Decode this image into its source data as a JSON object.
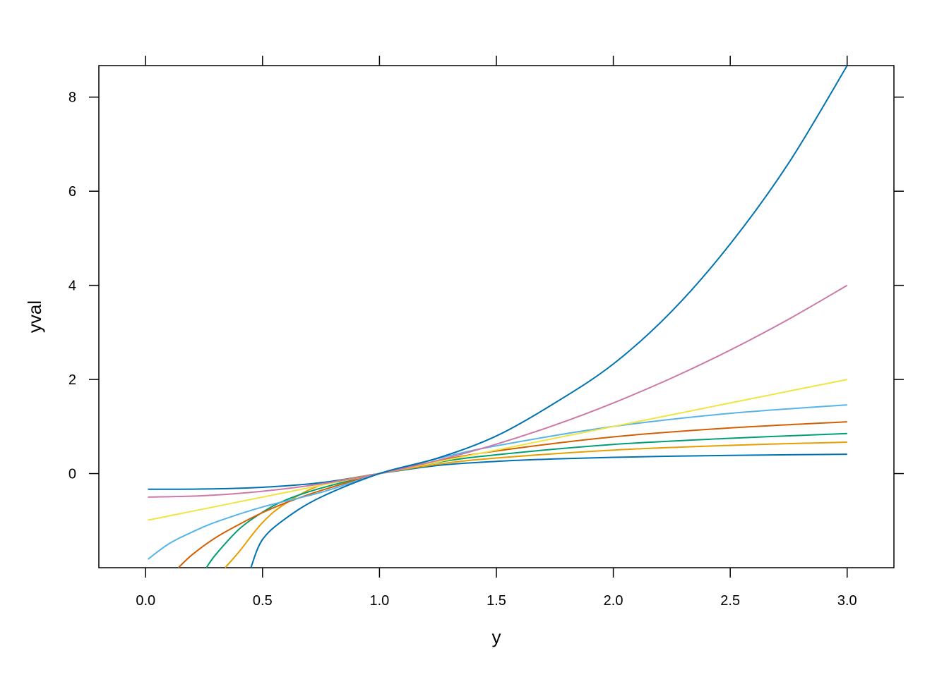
{
  "chart_data": {
    "type": "line",
    "title": "",
    "xlabel": "y",
    "ylabel": "yval",
    "xlim": [
      -0.2,
      3.2
    ],
    "ylim": [
      -2.0,
      8.67
    ],
    "x_ticks": [
      0.0,
      0.5,
      1.0,
      1.5,
      2.0,
      2.5,
      3.0
    ],
    "x_tick_labels": [
      "0.0",
      "0.5",
      "1.0",
      "1.5",
      "2.0",
      "2.5",
      "3.0"
    ],
    "y_ticks": [
      0,
      2,
      4,
      6,
      8
    ],
    "y_tick_labels": [
      "0",
      "2",
      "4",
      "6",
      "8"
    ],
    "grid": false,
    "legend": "none",
    "series": [
      {
        "color": "#0072B2",
        "x": [
          0.01,
          0.25,
          0.5,
          0.75,
          1.0,
          1.25,
          1.5,
          1.75,
          2.0,
          2.25,
          2.5,
          2.75,
          3.0
        ],
        "y": [
          -0.333,
          -0.328,
          -0.292,
          -0.193,
          0.0,
          0.173,
          0.259,
          0.312,
          0.346,
          0.369,
          0.387,
          0.4,
          0.411
        ]
      },
      {
        "color": "#E69F00",
        "x": [
          0.34,
          0.4,
          0.5,
          0.6,
          0.75,
          1.0,
          1.25,
          1.5,
          2.0,
          2.5,
          3.0
        ],
        "y": [
          -2.0,
          -1.66,
          -1.04,
          -0.63,
          -0.25,
          0.0,
          0.2,
          0.33,
          0.5,
          0.6,
          0.667
        ]
      },
      {
        "color": "#009E73",
        "x": [
          0.26,
          0.3,
          0.4,
          0.5,
          0.6,
          0.75,
          1.0,
          1.25,
          1.5,
          2.0,
          2.5,
          3.0
        ],
        "y": [
          -2.0,
          -1.72,
          -1.18,
          -0.82,
          -0.56,
          -0.31,
          0.0,
          0.24,
          0.4,
          0.62,
          0.75,
          0.85
        ]
      },
      {
        "color": "#D55E00",
        "x": [
          0.14,
          0.2,
          0.3,
          0.4,
          0.5,
          0.6,
          0.75,
          1.0,
          1.25,
          1.5,
          2.0,
          2.5,
          3.0
        ],
        "y": [
          -2.0,
          -1.72,
          -1.36,
          -1.08,
          -0.83,
          -0.62,
          -0.36,
          0.0,
          0.27,
          0.48,
          0.78,
          0.97,
          1.1
        ]
      },
      {
        "color": "#56B4E9",
        "x": [
          0.01,
          0.1,
          0.2,
          0.3,
          0.5,
          0.75,
          1.0,
          1.25,
          1.5,
          2.0,
          2.5,
          3.0
        ],
        "y": [
          -1.82,
          -1.49,
          -1.24,
          -1.03,
          -0.71,
          -0.4,
          0.0,
          0.32,
          0.59,
          1.0,
          1.28,
          1.46
        ]
      },
      {
        "color": "#F0E442",
        "x": [
          0.01,
          0.5,
          1.0,
          1.5,
          2.0,
          2.5,
          3.0
        ],
        "y": [
          -0.99,
          -0.5,
          0.0,
          0.5,
          1.0,
          1.5,
          2.0
        ]
      },
      {
        "color": "#CC79A7",
        "x": [
          0.01,
          0.25,
          0.5,
          0.75,
          1.0,
          1.25,
          1.5,
          1.75,
          2.0,
          2.25,
          2.5,
          2.75,
          3.0
        ],
        "y": [
          -0.5,
          -0.47,
          -0.375,
          -0.219,
          0.0,
          0.281,
          0.625,
          1.031,
          1.5,
          2.031,
          2.625,
          3.281,
          4.0
        ]
      },
      {
        "color": "#0072B2",
        "x": [
          0.45,
          0.5,
          0.6,
          0.75,
          1.0,
          1.25,
          1.5,
          1.75,
          2.0,
          2.25,
          2.5,
          2.75,
          3.0
        ],
        "y": [
          -2.0,
          -1.4,
          -0.95,
          -0.5,
          0.0,
          0.33,
          0.8,
          1.5,
          2.33,
          3.45,
          4.88,
          6.6,
          8.67
        ]
      }
    ]
  }
}
